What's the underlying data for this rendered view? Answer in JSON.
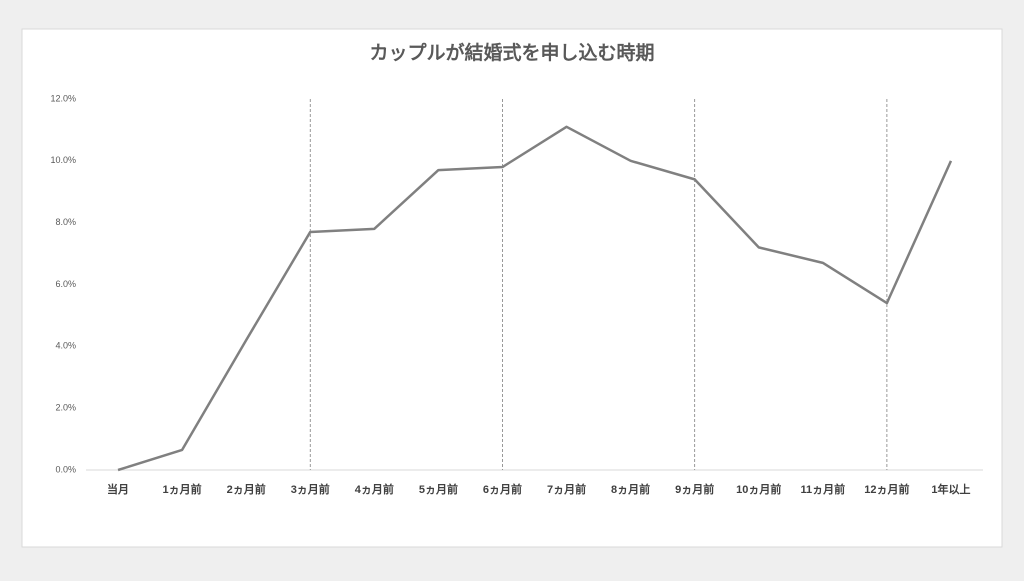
{
  "chart_data": {
    "type": "line",
    "title": "カップルが結婚式を申し込む時期",
    "categories": [
      "当月",
      "1ヵ月前",
      "2ヵ月前",
      "3ヵ月前",
      "4ヵ月前",
      "5ヵ月前",
      "6ヵ月前",
      "7ヵ月前",
      "8ヵ月前",
      "9ヵ月前",
      "10ヵ月前",
      "11ヵ月前",
      "12ヵ月前",
      "1年以上"
    ],
    "values": [
      0,
      0.65,
      4.2,
      7.7,
      7.8,
      9.7,
      9.8,
      11.1,
      10.0,
      9.4,
      7.2,
      6.7,
      5.4,
      10.0
    ],
    "color": "#808080",
    "ylim": [
      0,
      12
    ],
    "yticks": [
      {
        "value": 0,
        "label": "0.0%"
      },
      {
        "value": 2,
        "label": "2.0%"
      },
      {
        "value": 4,
        "label": "4.0%"
      },
      {
        "value": 6,
        "label": "6.0%"
      },
      {
        "value": 8,
        "label": "8.0%"
      },
      {
        "value": 10,
        "label": "10.0%"
      },
      {
        "value": 12,
        "label": "12.0%"
      }
    ],
    "grid": false,
    "reference_lines": [
      "3ヵ月前",
      "6ヵ月前",
      "9ヵ月前",
      "12ヵ月前"
    ]
  }
}
